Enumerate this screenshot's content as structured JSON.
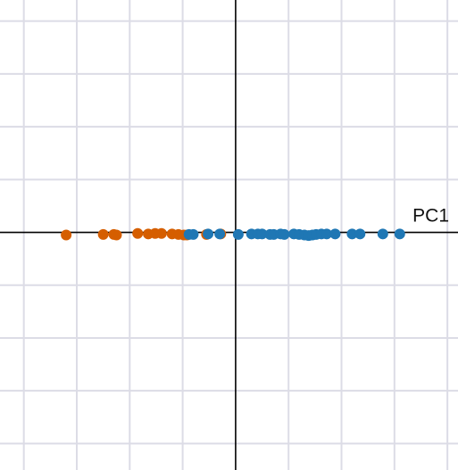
{
  "chart_data": {
    "type": "scatter",
    "xlabel": "PC1",
    "ylabel": "",
    "xlim": [
      -4.45,
      4.2
    ],
    "ylim": [
      -4.5,
      4.4
    ],
    "grid": true,
    "grid_step": 1,
    "series": [
      {
        "color": "#d55e00",
        "x": [
          -3.2,
          -2.5,
          -2.3,
          -2.25,
          -1.85,
          -1.65,
          -1.52,
          -1.4,
          -1.2,
          -1.08,
          -0.98,
          -0.92,
          -0.55,
          -0.28
        ],
        "y": [
          -0.05,
          -0.04,
          -0.04,
          -0.05,
          -0.02,
          -0.03,
          -0.02,
          -0.02,
          -0.03,
          -0.04,
          -0.05,
          -0.05,
          -0.04,
          -0.03
        ]
      },
      {
        "color": "#1f77b4",
        "x": [
          -0.88,
          -0.8,
          -0.52,
          -0.3,
          0.05,
          0.3,
          0.42,
          0.5,
          0.65,
          0.72,
          0.85,
          0.92,
          1.1,
          1.2,
          1.3,
          1.38,
          1.45,
          1.52,
          1.62,
          1.72,
          1.88,
          2.2,
          2.35,
          2.78,
          3.1
        ],
        "y": [
          -0.04,
          -0.04,
          -0.03,
          -0.03,
          -0.04,
          -0.03,
          -0.03,
          -0.03,
          -0.04,
          -0.04,
          -0.03,
          -0.04,
          -0.03,
          -0.04,
          -0.05,
          -0.06,
          -0.05,
          -0.04,
          -0.03,
          -0.03,
          -0.03,
          -0.03,
          -0.03,
          -0.03,
          -0.03
        ]
      }
    ]
  }
}
